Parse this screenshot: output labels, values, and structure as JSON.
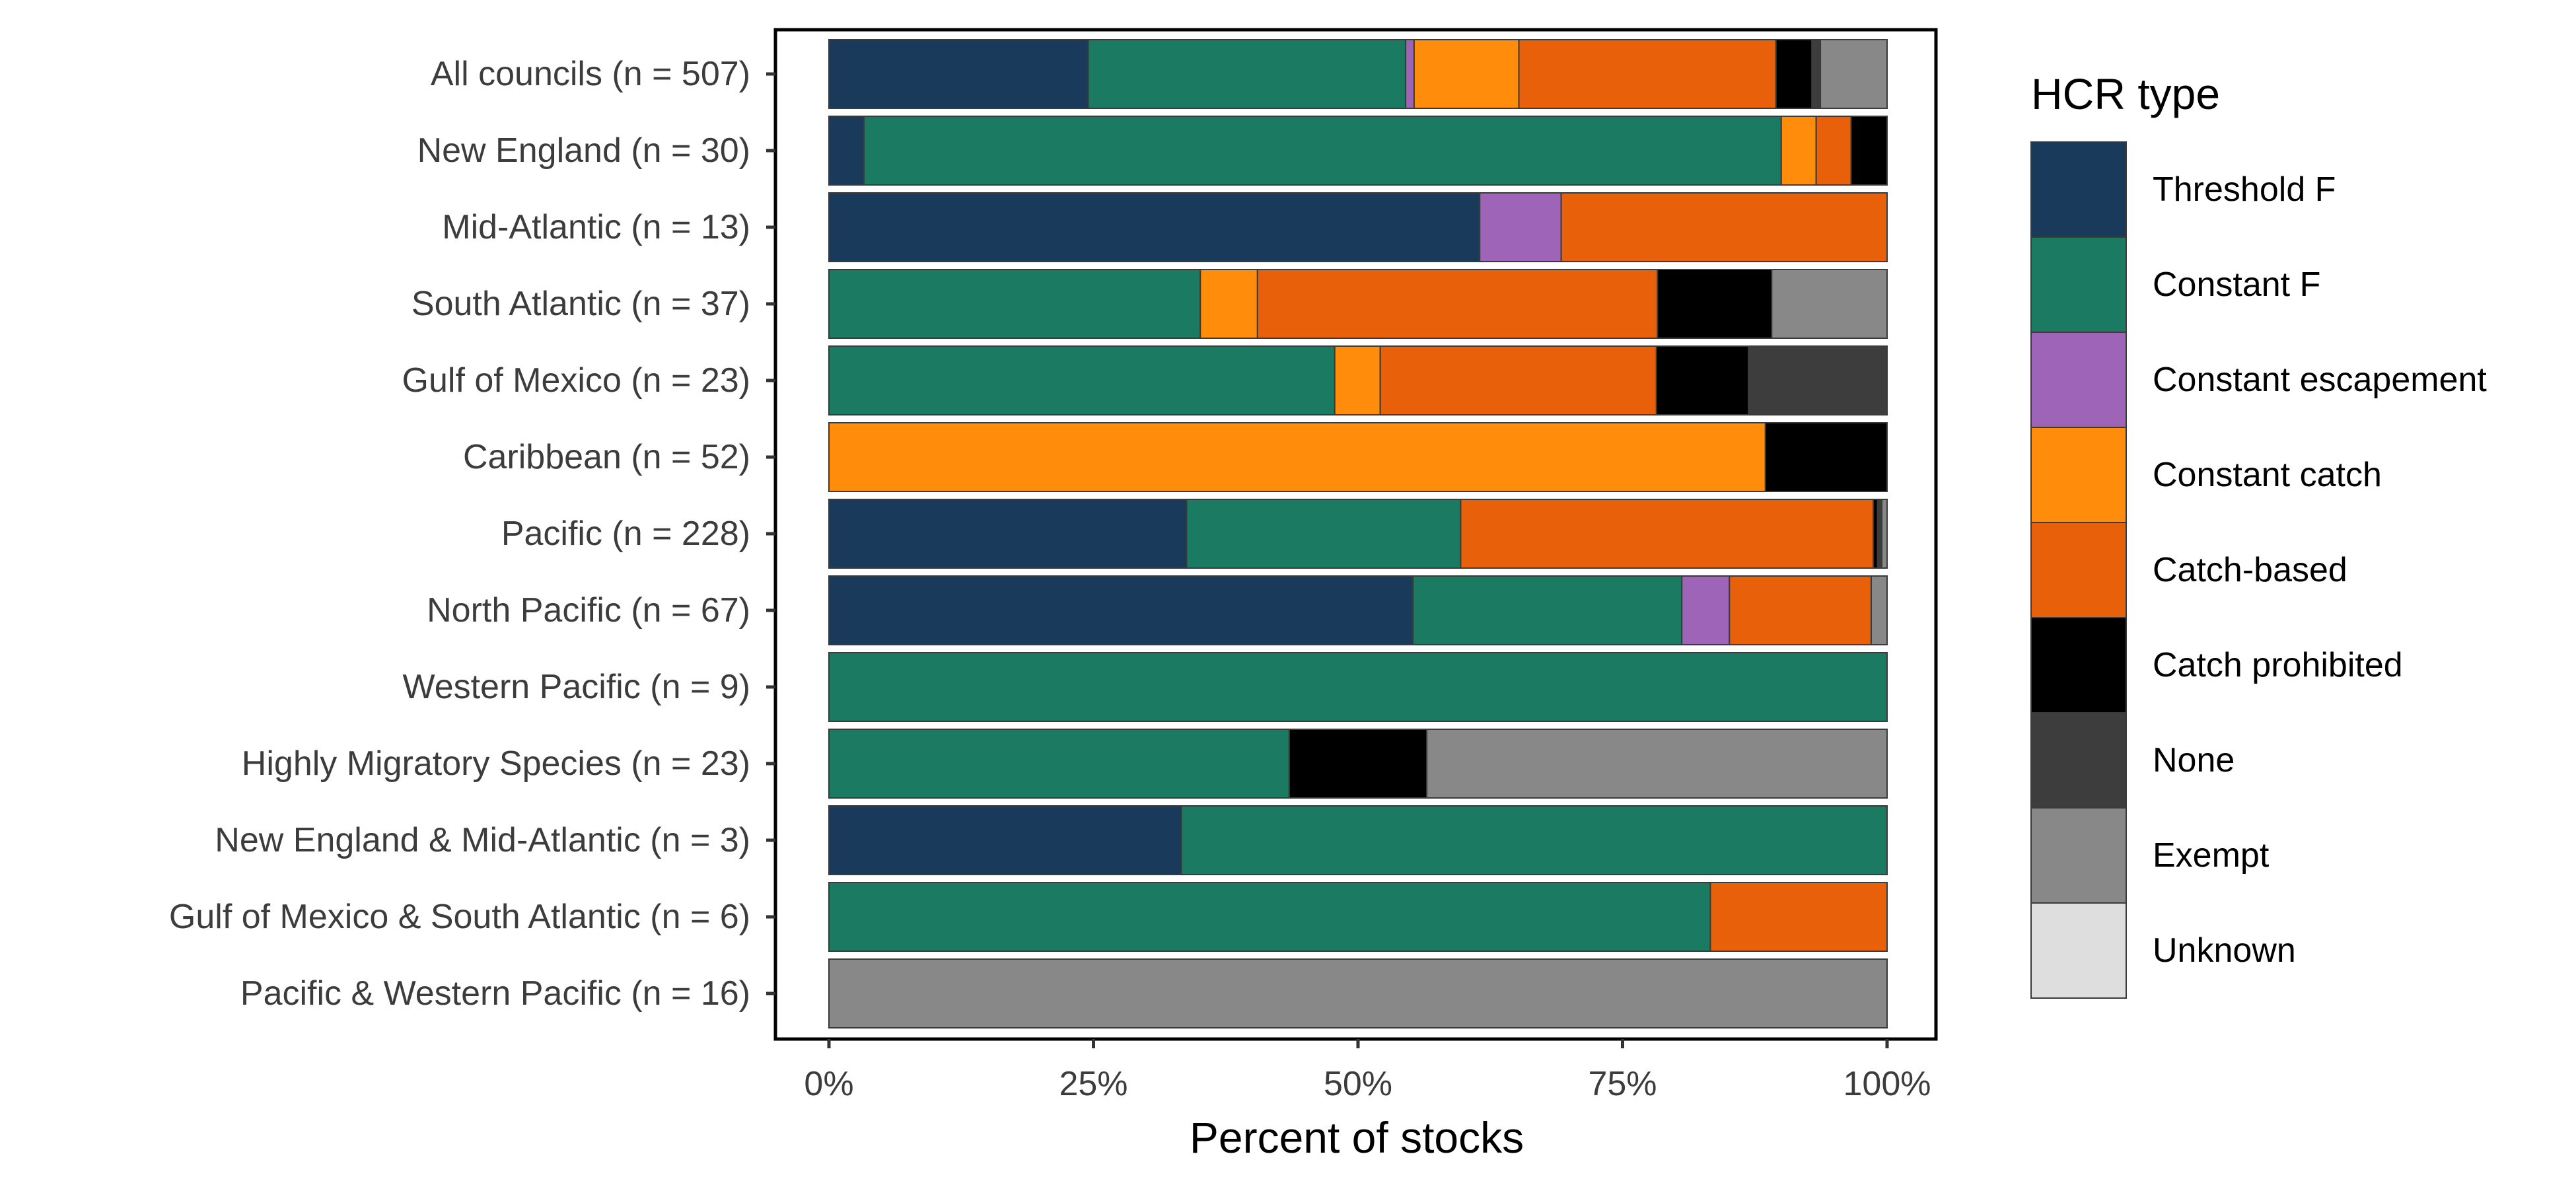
{
  "chart_data": {
    "type": "bar",
    "orientation": "horizontal",
    "stacked": true,
    "xlabel": "Percent of stocks",
    "ylabel": "",
    "xlim": [
      0,
      100
    ],
    "x_ticks": [
      "0%",
      "25%",
      "50%",
      "75%",
      "100%"
    ],
    "x_tick_values": [
      0,
      25,
      50,
      75,
      100
    ],
    "grid": false,
    "legend": {
      "title": "HCR type",
      "position": "right"
    },
    "categories": [
      "All councils (n = 507)",
      "New England (n = 30)",
      "Mid-Atlantic (n = 13)",
      "South Atlantic (n = 37)",
      "Gulf of Mexico (n = 23)",
      "Caribbean (n = 52)",
      "Pacific (n = 228)",
      "North Pacific (n = 67)",
      "Western Pacific (n = 9)",
      "Highly Migratory Species (n = 23)",
      "New England & Mid-Atlantic (n = 3)",
      "Gulf of Mexico & South Atlantic (n = 6)",
      "Pacific & Western Pacific (n = 16)"
    ],
    "series": [
      {
        "name": "Threshold F",
        "color": "#1a3a5c",
        "values": [
          24.5,
          3.3,
          61.5,
          0,
          0,
          0,
          33.8,
          55.2,
          0,
          0,
          33.3,
          0,
          0
        ]
      },
      {
        "name": "Constant F",
        "color": "#1a7a62",
        "values": [
          30.0,
          86.7,
          0,
          35.1,
          47.8,
          0,
          25.9,
          25.4,
          100,
          43.5,
          66.7,
          83.3,
          0
        ]
      },
      {
        "name": "Constant escapement",
        "color": "#9e64b8",
        "values": [
          0.8,
          0,
          7.7,
          0,
          0,
          0,
          0,
          4.5,
          0,
          0,
          0,
          0,
          0
        ]
      },
      {
        "name": "Constant catch",
        "color": "#ff8c0a",
        "values": [
          9.9,
          3.3,
          0,
          5.4,
          4.3,
          88.5,
          0,
          0,
          0,
          0,
          0,
          0,
          0
        ]
      },
      {
        "name": "Catch-based",
        "color": "#e8600a",
        "values": [
          24.3,
          3.3,
          30.8,
          37.8,
          26.1,
          0,
          39.0,
          13.4,
          0,
          0,
          0,
          16.7,
          0
        ]
      },
      {
        "name": "Catch prohibited",
        "color": "#000000",
        "values": [
          3.4,
          3.4,
          0,
          10.8,
          8.7,
          11.5,
          0.4,
          0,
          0,
          13.0,
          0,
          0,
          0
        ]
      },
      {
        "name": "None",
        "color": "#3d3d3d",
        "values": [
          0.8,
          0,
          0,
          0,
          13.1,
          0,
          0.4,
          0,
          0,
          0,
          0,
          0,
          0
        ]
      },
      {
        "name": "Exempt",
        "color": "#888888",
        "values": [
          6.3,
          0,
          0,
          10.9,
          0,
          0,
          0.5,
          1.5,
          0,
          43.5,
          0,
          0,
          100
        ]
      },
      {
        "name": "Unknown",
        "color": "#dedede",
        "values": [
          0,
          0,
          0,
          0,
          0,
          0,
          0,
          0,
          0,
          0,
          0,
          0,
          0
        ]
      }
    ]
  }
}
